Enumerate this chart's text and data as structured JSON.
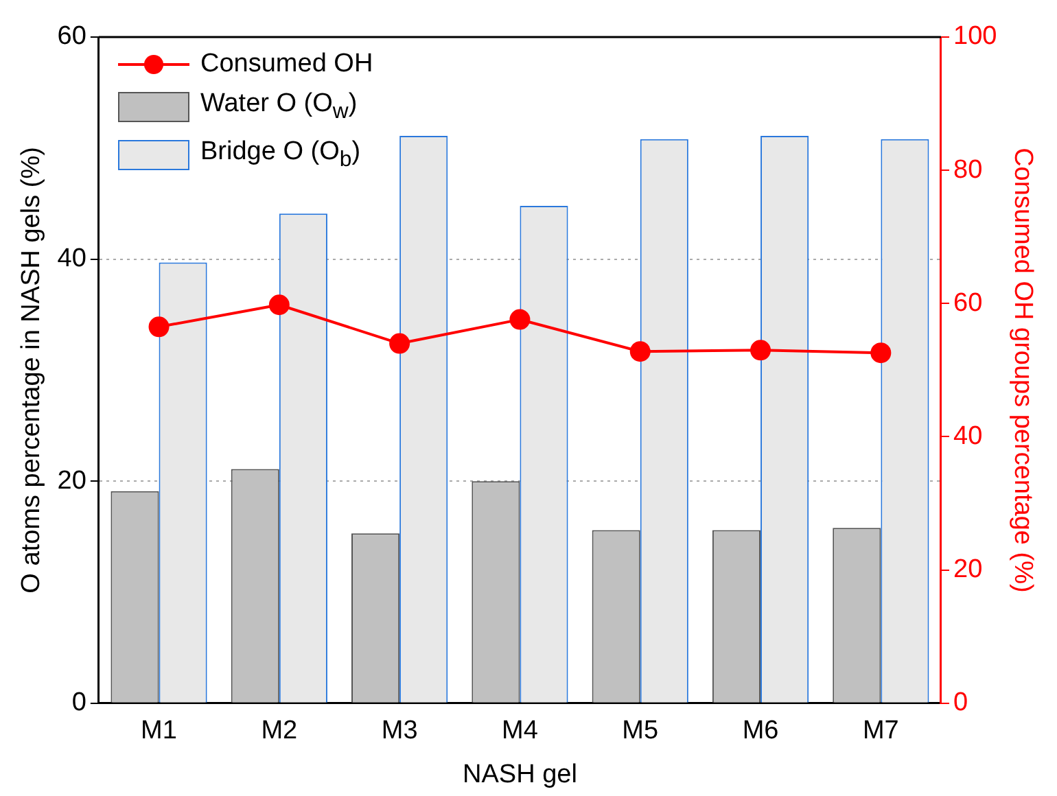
{
  "chart_data": {
    "type": "bar",
    "xlabel": "NASH gel",
    "ylabel": "O atoms percentage in NASH gels (%)",
    "y2label": "Consumed OH groups percentage (%)",
    "categories": [
      "M1",
      "M2",
      "M3",
      "M4",
      "M5",
      "M6",
      "M7"
    ],
    "series": [
      {
        "name": "Consumed OH",
        "type": "line",
        "axis": "y2",
        "color": "#ff0000",
        "marker": "circle",
        "line_style": "solid",
        "values": [
          56.5,
          59.8,
          54.0,
          57.6,
          52.8,
          53.0,
          52.6
        ]
      },
      {
        "name": "Water O (O$_{w}$)",
        "color": "#c0c0c0",
        "values": [
          19.1,
          21.1,
          15.3,
          20.0,
          15.6,
          15.6,
          15.8
        ]
      },
      {
        "name": "Bridge O (O$_{b}$)",
        "color": "#e8e8e8",
        "values": [
          39.7,
          44.1,
          51.1,
          44.8,
          50.8,
          51.1,
          50.8
        ]
      }
    ],
    "ylim": [
      0,
      60
    ],
    "yticks": [
      0,
      20,
      40,
      60
    ],
    "y2lim": [
      0,
      100
    ],
    "y2ticks": [
      0,
      20,
      40,
      60,
      80,
      100
    ],
    "grid": "y",
    "legend": "top left"
  }
}
